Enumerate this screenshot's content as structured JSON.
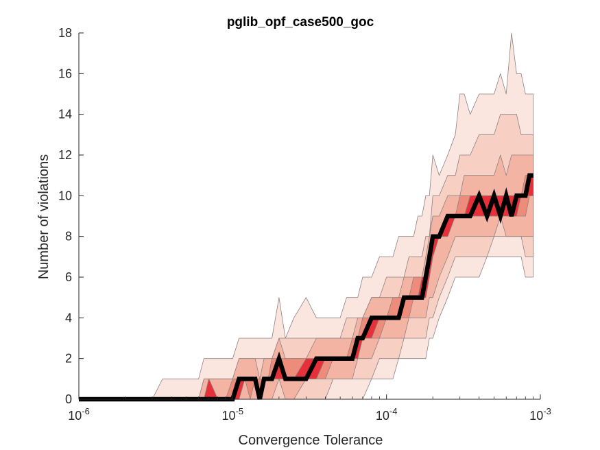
{
  "chart_data": {
    "type": "area",
    "title": "pglib_opf_case500_goc",
    "xlabel": "Convergence Tolerance",
    "ylabel": "Number of violations",
    "xscale": "log",
    "xlim": [
      1e-06,
      0.001
    ],
    "ylim": [
      0,
      18
    ],
    "xticks": [
      {
        "value": 1e-06,
        "base": "10",
        "exp": "-6"
      },
      {
        "value": 1e-05,
        "base": "10",
        "exp": "-5"
      },
      {
        "value": 0.0001,
        "base": "10",
        "exp": "-4"
      },
      {
        "value": 0.001,
        "base": "10",
        "exp": "-3"
      }
    ],
    "yticks": [
      "0",
      "2",
      "4",
      "6",
      "8",
      "10",
      "12",
      "14",
      "16",
      "18"
    ],
    "x": [
      1e-06,
      1.5e-06,
      2e-06,
      2.5e-06,
      3e-06,
      3.5e-06,
      4e-06,
      4.5e-06,
      5e-06,
      5.5e-06,
      6e-06,
      6.5e-06,
      7e-06,
      8e-06,
      9e-06,
      1e-05,
      1.1e-05,
      1.2e-05,
      1.3e-05,
      1.4e-05,
      1.5e-05,
      1.6e-05,
      1.7e-05,
      1.8e-05,
      2e-05,
      2.2e-05,
      2.5e-05,
      3e-05,
      3.5e-05,
      4e-05,
      4.5e-05,
      5e-05,
      5.5e-05,
      6e-05,
      6.5e-05,
      7e-05,
      8e-05,
      9e-05,
      0.0001,
      0.00011,
      0.00012,
      0.00013,
      0.00014,
      0.00015,
      0.00016,
      0.00017,
      0.00018,
      0.00019,
      0.0002,
      0.00022,
      0.00025,
      0.00028,
      0.0003,
      0.00032,
      0.00035,
      0.0004,
      0.00045,
      0.0005,
      0.00055,
      0.0006,
      0.00065,
      0.0007,
      0.00075,
      0.0008,
      0.00085,
      0.0009
    ],
    "median": [
      0,
      0,
      0,
      0,
      0,
      0,
      0,
      0,
      0,
      0,
      0,
      0,
      0,
      0,
      0,
      0,
      1,
      1,
      1,
      1,
      0,
      1,
      1,
      1,
      2,
      1,
      1,
      1,
      2,
      2,
      2,
      2,
      2,
      2,
      3,
      3,
      4,
      4,
      4,
      4,
      4,
      5,
      5,
      5,
      5,
      5,
      6,
      7,
      8,
      8,
      9,
      9,
      9,
      9,
      9,
      10,
      9,
      10,
      9,
      10,
      9,
      10,
      10,
      10,
      11,
      11
    ],
    "bands": [
      {
        "color": "#fbe5df",
        "lower": [
          0,
          0,
          0,
          0,
          0,
          0,
          0,
          0,
          0,
          0,
          0,
          0,
          0,
          0,
          0,
          0,
          0,
          0,
          0,
          0,
          0,
          0,
          0,
          0,
          0,
          0,
          0,
          0,
          0,
          0,
          0,
          0,
          0,
          0,
          0,
          0,
          1,
          1,
          1,
          1,
          2,
          2,
          2,
          2,
          2,
          2,
          2,
          3,
          3,
          4,
          5,
          6,
          6,
          6,
          6,
          6,
          7,
          7,
          7,
          7,
          7,
          7,
          7,
          6,
          6,
          6
        ],
        "upper": [
          0,
          0,
          0,
          0,
          0,
          1,
          1,
          1,
          1,
          1,
          1,
          2,
          2,
          2,
          2,
          2,
          3,
          3,
          3,
          3,
          3,
          3,
          3,
          3,
          5,
          3,
          4,
          5,
          4,
          4,
          4,
          4,
          5,
          5,
          5,
          6,
          6,
          7,
          7,
          7,
          8,
          8,
          8,
          8,
          9,
          9,
          10,
          10,
          12,
          11,
          12,
          13,
          15,
          15,
          14,
          15,
          15,
          15,
          16,
          15,
          18,
          16,
          16,
          15,
          15,
          15
        ]
      },
      {
        "color": "#f8cfc3",
        "lower": [
          0,
          0,
          0,
          0,
          0,
          0,
          0,
          0,
          0,
          0,
          0,
          0,
          0,
          0,
          0,
          0,
          0,
          0,
          0,
          0,
          0,
          0,
          0,
          0,
          0,
          0,
          0,
          0,
          0,
          0,
          1,
          1,
          1,
          1,
          1,
          1,
          1,
          2,
          2,
          2,
          2,
          3,
          3,
          3,
          3,
          3,
          3,
          4,
          4,
          5,
          6,
          7,
          7,
          7,
          7,
          7,
          7,
          8,
          8,
          8,
          8,
          8,
          8,
          7,
          7,
          7
        ],
        "upper": [
          0,
          0,
          0,
          0,
          0,
          0,
          0,
          0,
          0,
          0,
          0,
          1,
          1,
          1,
          1,
          1,
          2,
          2,
          2,
          2,
          2,
          2,
          2,
          2,
          3,
          3,
          3,
          3,
          3,
          3,
          3,
          3,
          4,
          4,
          4,
          4,
          5,
          5,
          6,
          6,
          6,
          6,
          7,
          7,
          7,
          7,
          8,
          8,
          10,
          10,
          11,
          11,
          12,
          12,
          12,
          13,
          13,
          13,
          14,
          14,
          14,
          14,
          13,
          13,
          13,
          13
        ]
      },
      {
        "color": "#f4b4a3",
        "lower": [
          0,
          0,
          0,
          0,
          0,
          0,
          0,
          0,
          0,
          0,
          0,
          0,
          0,
          0,
          0,
          0,
          0,
          0,
          0,
          0,
          0,
          0,
          0,
          0,
          1,
          0,
          0,
          1,
          1,
          1,
          1,
          1,
          1,
          1,
          2,
          2,
          2,
          3,
          3,
          3,
          3,
          3,
          4,
          4,
          4,
          4,
          4,
          5,
          5,
          6,
          7,
          8,
          8,
          8,
          8,
          8,
          8,
          8,
          9,
          8,
          8,
          8,
          8,
          8,
          8,
          8
        ],
        "upper": [
          0,
          0,
          0,
          0,
          0,
          0,
          0,
          0,
          0,
          0,
          0,
          1,
          1,
          1,
          1,
          1,
          2,
          2,
          2,
          2,
          1,
          2,
          2,
          2,
          3,
          2,
          2,
          2,
          3,
          3,
          3,
          3,
          3,
          3,
          4,
          4,
          5,
          5,
          5,
          5,
          5,
          6,
          6,
          6,
          6,
          6,
          7,
          8,
          9,
          9,
          10,
          10,
          10,
          11,
          11,
          11,
          11,
          11,
          12,
          11,
          12,
          12,
          12,
          12,
          12,
          12
        ]
      },
      {
        "color": "#ee8c7c",
        "lower": [
          0,
          0,
          0,
          0,
          0,
          0,
          0,
          0,
          0,
          0,
          0,
          0,
          0,
          0,
          0,
          0,
          0,
          1,
          0,
          1,
          0,
          1,
          1,
          1,
          1,
          1,
          1,
          1,
          1,
          1,
          2,
          2,
          2,
          2,
          2,
          3,
          3,
          3,
          4,
          4,
          4,
          4,
          4,
          5,
          5,
          5,
          5,
          6,
          7,
          8,
          8,
          9,
          9,
          9,
          9,
          9,
          9,
          9,
          9,
          9,
          9,
          9,
          9,
          9,
          10,
          10
        ],
        "upper": [
          0,
          0,
          0,
          0,
          0,
          0,
          0,
          0,
          0,
          0,
          0,
          0,
          1,
          0,
          0,
          1,
          1,
          1,
          1,
          1,
          1,
          1,
          1,
          2,
          2,
          2,
          2,
          2,
          2,
          2,
          2,
          2,
          2,
          3,
          3,
          4,
          4,
          4,
          4,
          5,
          5,
          5,
          5,
          6,
          6,
          6,
          6,
          7,
          8,
          8,
          9,
          9,
          10,
          10,
          10,
          10,
          10,
          10,
          10,
          10,
          10,
          10,
          10,
          11,
          11,
          11
        ]
      },
      {
        "color": "#e8303b",
        "lower": [
          0,
          0,
          0,
          0,
          0,
          0,
          0,
          0,
          0,
          0,
          0,
          0,
          0,
          0,
          0,
          0,
          0,
          1,
          1,
          1,
          0,
          1,
          1,
          1,
          1,
          1,
          1,
          1,
          1,
          2,
          2,
          2,
          2,
          2,
          2,
          3,
          3,
          4,
          4,
          4,
          4,
          5,
          5,
          5,
          5,
          5,
          5,
          6,
          7,
          8,
          8,
          9,
          9,
          9,
          9,
          9,
          9,
          9,
          9,
          9,
          9,
          9,
          10,
          10,
          10,
          10
        ],
        "upper": [
          0,
          0,
          0,
          0,
          0,
          0,
          0,
          0,
          0,
          0,
          0,
          0,
          1,
          0,
          0,
          0,
          1,
          1,
          1,
          1,
          0,
          1,
          1,
          1,
          2,
          1,
          1,
          2,
          2,
          2,
          2,
          2,
          2,
          2,
          3,
          3,
          4,
          4,
          4,
          4,
          4,
          5,
          5,
          5,
          5,
          6,
          6,
          7,
          8,
          8,
          9,
          9,
          9,
          9,
          10,
          10,
          10,
          10,
          10,
          10,
          10,
          10,
          10,
          10,
          11,
          11
        ]
      }
    ]
  }
}
